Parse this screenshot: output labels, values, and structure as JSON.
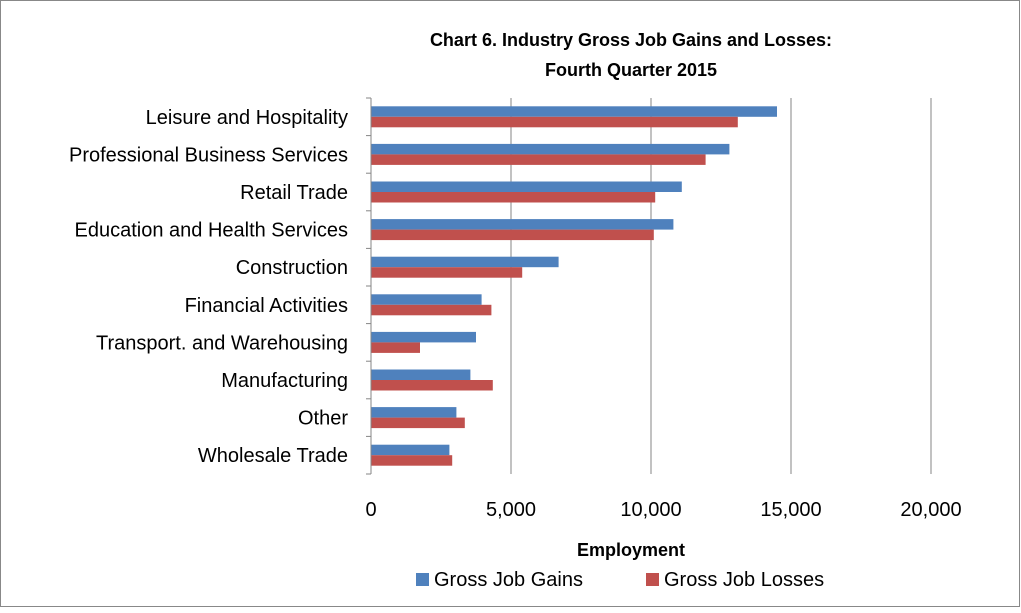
{
  "chart_data": {
    "type": "bar",
    "orientation": "horizontal",
    "title_lines": [
      "Chart 6. Industry Gross Job Gains and Losses:",
      "Fourth Quarter 2015"
    ],
    "xlabel": "Employment",
    "ylabel": "",
    "xlim": [
      0,
      20000
    ],
    "xticks": [
      0,
      5000,
      10000,
      15000,
      20000
    ],
    "xtick_labels": [
      "0",
      "5,000",
      "10,000",
      "15,000",
      "20,000"
    ],
    "grid": true,
    "legend_position": "bottom",
    "categories": [
      "Leisure and Hospitality",
      "Professional Business Services",
      "Retail Trade",
      "Education and Health Services",
      "Construction",
      "Financial Activities",
      "Transport. and Warehousing",
      "Manufacturing",
      "Other",
      "Wholesale Trade"
    ],
    "series": [
      {
        "name": "Gross Job Gains",
        "color": "#4F81BD",
        "values": [
          14500,
          12800,
          11100,
          10800,
          6700,
          3950,
          3750,
          3550,
          3050,
          2800
        ]
      },
      {
        "name": "Gross Job Losses",
        "color": "#C0504D",
        "values": [
          13100,
          11950,
          10150,
          10100,
          5400,
          4300,
          1750,
          4350,
          3350,
          2900
        ]
      }
    ]
  }
}
